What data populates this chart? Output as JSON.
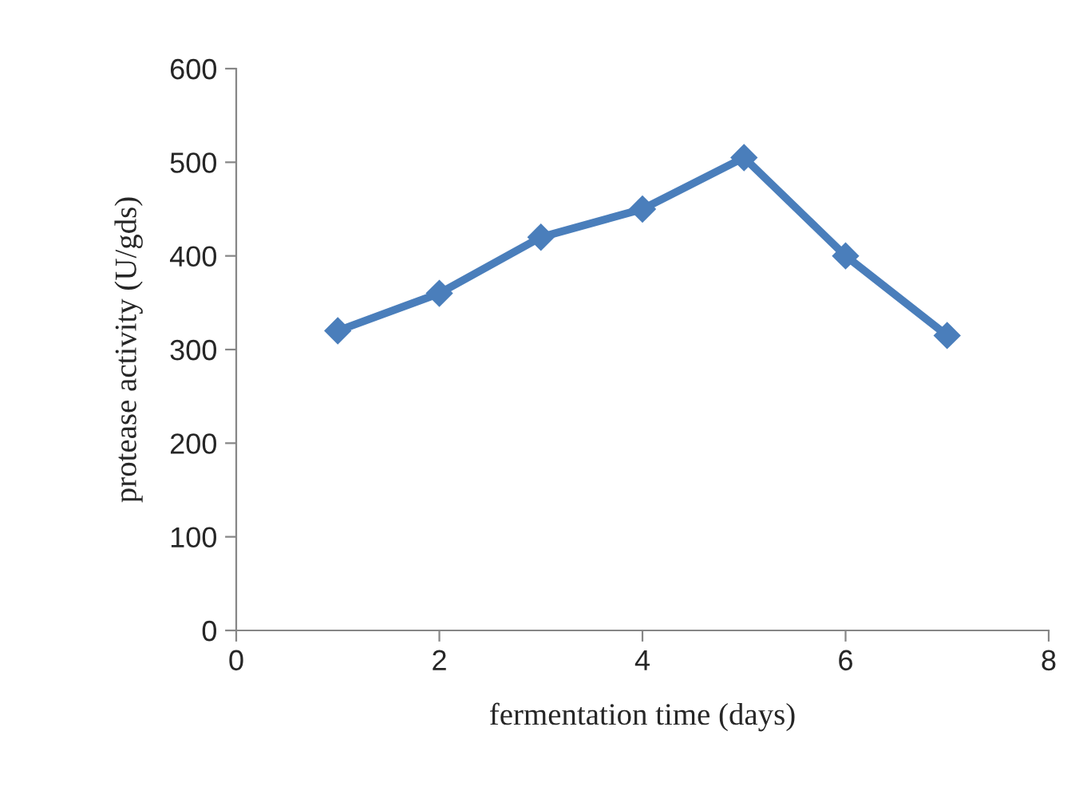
{
  "chart_data": {
    "type": "line",
    "xlabel": "fermentation time (days)",
    "ylabel": "protease activity (U/gds)",
    "x": [
      1,
      2,
      3,
      4,
      5,
      6,
      7
    ],
    "series": [
      {
        "color": "#4a7ebb",
        "values": [
          320,
          360,
          420,
          450,
          505,
          400,
          315
        ]
      }
    ],
    "xlim": [
      0,
      8
    ],
    "xticks": [
      0,
      2,
      4,
      6,
      8
    ],
    "ylim": [
      0,
      600
    ],
    "yticks": [
      0,
      100,
      200,
      300,
      400,
      500,
      600
    ],
    "grid": false,
    "marker": "diamond",
    "line_style": "solid"
  }
}
